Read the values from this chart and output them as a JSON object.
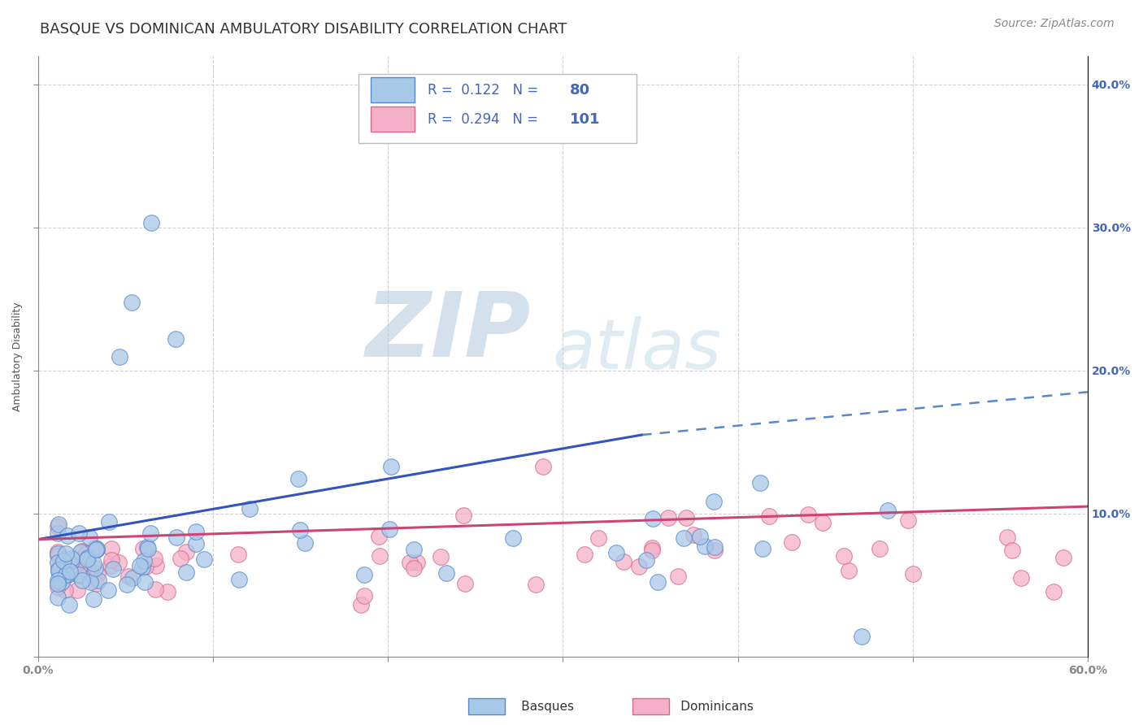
{
  "title": "BASQUE VS DOMINICAN AMBULATORY DISABILITY CORRELATION CHART",
  "source": "Source: ZipAtlas.com",
  "ylabel": "Ambulatory Disability",
  "xlim": [
    0.0,
    0.6
  ],
  "ylim": [
    0.0,
    0.42
  ],
  "yticks": [
    0.0,
    0.1,
    0.2,
    0.3,
    0.4
  ],
  "xticks": [
    0.0,
    0.1,
    0.2,
    0.3,
    0.4,
    0.5,
    0.6
  ],
  "xtick_labels": [
    "0.0%",
    "",
    "",
    "",
    "",
    "",
    "60.0%"
  ],
  "right_ytick_labels": [
    "",
    "10.0%",
    "20.0%",
    "30.0%",
    "40.0%"
  ],
  "basque_R": 0.122,
  "basque_N": 80,
  "dominican_R": 0.294,
  "dominican_N": 101,
  "basque_color": "#a8c8e8",
  "dominican_color": "#f4b0c8",
  "basque_edge_color": "#5588cc",
  "dominican_edge_color": "#dd6688",
  "basque_line_color": "#3355bb",
  "dominican_line_color": "#cc4477",
  "dashed_line_color": "#5588cc",
  "title_color": "#333333",
  "watermark_color_zip": "#c0cfe0",
  "watermark_color_atlas": "#c8dce8",
  "legend_text_color": "#4466bb",
  "background_color": "#ffffff",
  "grid_color": "#cccccc",
  "tick_color": "#4466bb",
  "title_fontsize": 13,
  "axis_label_fontsize": 9,
  "tick_fontsize": 10,
  "source_fontsize": 10,
  "legend_fontsize": 12,
  "watermark_fontsize_zip": 72,
  "watermark_fontsize_atlas": 60
}
